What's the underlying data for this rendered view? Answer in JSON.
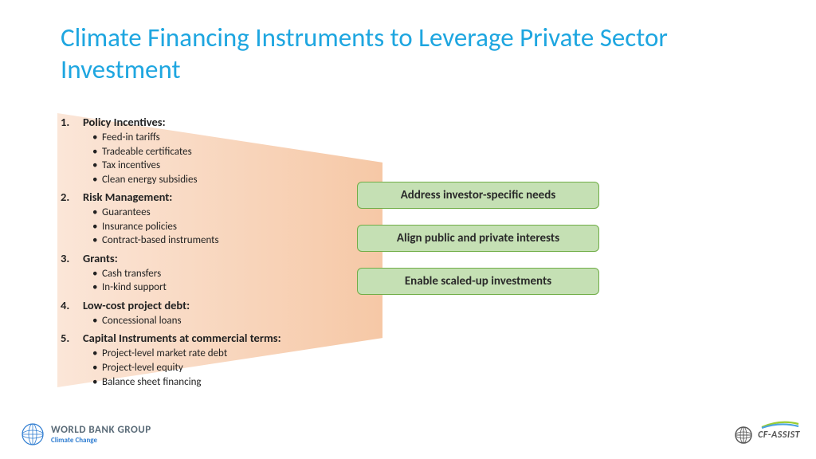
{
  "title": "Climate Financing Instruments to Leverage Private Sector Investment",
  "title_color": "#1ea6e0",
  "trapezoid": {
    "gradient_from": "#fbe6d8",
    "gradient_to": "#f6c8a6"
  },
  "list": [
    {
      "num": "1.",
      "heading": "Policy Incentives:",
      "bullets": [
        "Feed-in tariffs",
        "Tradeable certificates",
        "Tax incentives",
        "Clean energy subsidies"
      ]
    },
    {
      "num": "2.",
      "heading": "Risk Management:",
      "bullets": [
        "Guarantees",
        "Insurance policies",
        "Contract-based instruments"
      ]
    },
    {
      "num": "3.",
      "heading": "Grants:",
      "bullets": [
        "Cash transfers",
        "In-kind support"
      ]
    },
    {
      "num": "4.",
      "heading": "Low-cost project debt:",
      "bullets": [
        "Concessional loans"
      ]
    },
    {
      "num": "5.",
      "heading": "Capital Instruments at commercial terms:",
      "bullets": [
        "Project-level market rate debt",
        "Project-level equity",
        "Balance sheet financing"
      ]
    }
  ],
  "callouts": [
    "Address investor-specific needs",
    "Align public and private interests",
    "Enable scaled-up investments"
  ],
  "callout_style": {
    "bg": "#c5e0b4",
    "border": "#70ad47",
    "radius": 6
  },
  "footer": {
    "left_main": "WORLD BANK GROUP",
    "left_sub": "Climate Change",
    "right": "CF-ASSIST"
  },
  "text_color": "#222222",
  "background_color": "#ffffff"
}
